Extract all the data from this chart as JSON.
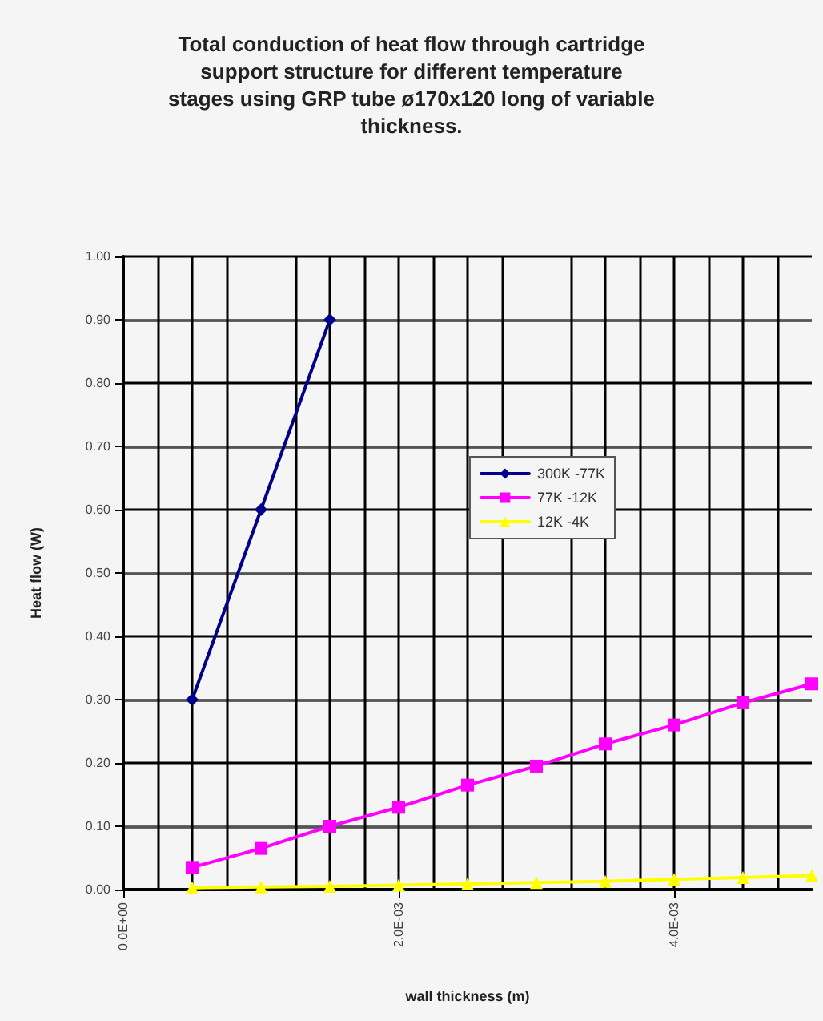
{
  "chart_data": {
    "type": "line",
    "title": "Total conduction of heat flow through cartridge\nsupport structure for different temperature\nstages using GRP tube ø170x120 long of variable\nthickness.",
    "xlabel": "wall thickness (m)",
    "ylabel": "Heat flow (W)",
    "xlim": [
      0,
      0.005
    ],
    "xticks": [
      {
        "value": 0,
        "label": "0.0E+00"
      },
      {
        "value": 0.002,
        "label": "2.0E-03"
      },
      {
        "value": 0.004,
        "label": "4.0E-03"
      }
    ],
    "ylim": [
      0,
      1
    ],
    "yticks": [
      {
        "value": 0,
        "label": "0.00"
      },
      {
        "value": 0.1,
        "label": "0.10"
      },
      {
        "value": 0.2,
        "label": "0.20"
      },
      {
        "value": 0.3,
        "label": "0.30"
      },
      {
        "value": 0.4,
        "label": "0.40"
      },
      {
        "value": 0.5,
        "label": "0.50"
      },
      {
        "value": 0.6,
        "label": "0.60"
      },
      {
        "value": 0.7,
        "label": "0.70"
      },
      {
        "value": 0.8,
        "label": "0.80"
      },
      {
        "value": 0.9,
        "label": "0.90"
      },
      {
        "value": 1,
        "label": "1.00"
      }
    ],
    "grid": true,
    "legend": "right",
    "line_style": "solid",
    "series": [
      {
        "name": "300K -77K",
        "color": "#00008b",
        "marker": "diamond",
        "x": [
          0.0005,
          0.001,
          0.0015
        ],
        "values": [
          0.3,
          0.6,
          0.9
        ]
      },
      {
        "name": "77K -12K",
        "color": "#ff00ff",
        "marker": "square",
        "x": [
          0.0005,
          0.001,
          0.0015,
          0.002,
          0.0025,
          0.003,
          0.0035,
          0.004,
          0.0045,
          0.005
        ],
        "values": [
          0.035,
          0.065,
          0.1,
          0.13,
          0.165,
          0.195,
          0.23,
          0.26,
          0.295,
          0.325
        ]
      },
      {
        "name": "12K -4K",
        "color": "#ffff00",
        "marker": "triangle",
        "x": [
          0.0005,
          0.001,
          0.0015,
          0.002,
          0.0025,
          0.003,
          0.0035,
          0.004,
          0.0045,
          0.005
        ],
        "values": [
          0.003,
          0.004,
          0.005,
          0.007,
          0.009,
          0.011,
          0.013,
          0.016,
          0.019,
          0.022
        ]
      }
    ]
  }
}
